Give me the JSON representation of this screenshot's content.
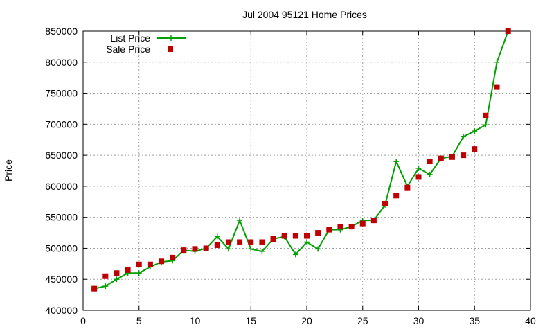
{
  "chart_data": {
    "type": "line",
    "title": "Jul 2004 95121 Home Prices",
    "xlabel": "",
    "ylabel": "Price",
    "xlim": [
      0,
      40
    ],
    "ylim": [
      400000,
      850000
    ],
    "x_ticks": [
      "0",
      "5",
      "10",
      "15",
      "20",
      "25",
      "30",
      "35",
      "40"
    ],
    "y_ticks": [
      "400000",
      "450000",
      "500000",
      "550000",
      "600000",
      "650000",
      "700000",
      "750000",
      "800000",
      "850000"
    ],
    "grid": true,
    "legend_position": "top-left",
    "series": [
      {
        "name": "List Price",
        "style": "line-with-plus-markers",
        "color": "#00a000",
        "x": [
          1,
          2,
          3,
          4,
          5,
          6,
          7,
          8,
          9,
          10,
          11,
          12,
          13,
          14,
          15,
          16,
          17,
          18,
          19,
          20,
          21,
          22,
          23,
          24,
          25,
          26,
          27,
          28,
          29,
          30,
          31,
          32,
          33,
          34,
          35,
          36,
          37,
          38
        ],
        "y": [
          435000,
          439000,
          450000,
          460000,
          460000,
          470000,
          478000,
          480000,
          497000,
          495000,
          500000,
          519000,
          499000,
          545000,
          499000,
          495000,
          515000,
          519000,
          490000,
          510000,
          499000,
          530000,
          530000,
          535000,
          545000,
          545000,
          570000,
          640000,
          600000,
          629000,
          619000,
          645000,
          648000,
          680000,
          689000,
          699000,
          800000,
          850000
        ]
      },
      {
        "name": "Sale Price",
        "style": "square-markers",
        "color": "#c00000",
        "x": [
          1,
          2,
          3,
          4,
          5,
          6,
          7,
          8,
          9,
          10,
          11,
          12,
          13,
          14,
          15,
          16,
          17,
          18,
          19,
          20,
          21,
          22,
          23,
          24,
          25,
          26,
          27,
          28,
          29,
          30,
          31,
          32,
          33,
          34,
          35,
          36,
          37,
          38
        ],
        "y": [
          435000,
          455000,
          460000,
          465000,
          474000,
          474000,
          479000,
          485000,
          497000,
          499000,
          500000,
          505000,
          510000,
          510000,
          510000,
          510000,
          515000,
          520000,
          520000,
          520000,
          525000,
          530000,
          535000,
          535000,
          540000,
          545000,
          572000,
          585000,
          598000,
          615000,
          640000,
          645000,
          647000,
          650000,
          660000,
          714000,
          760000,
          850000
        ]
      }
    ]
  }
}
